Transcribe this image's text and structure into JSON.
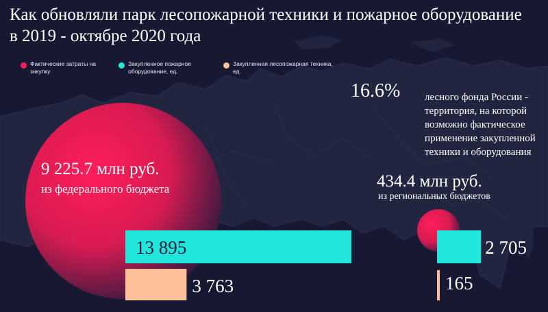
{
  "title": "Как обновляли парк лесопожарной техники и пожарное оборудование в 2019 - октябре 2020 года",
  "legend": [
    {
      "label": "Фактические затраты на закупку",
      "color": "#ff1e5a"
    },
    {
      "label": "Закупленное пожарное оборудование, ед.",
      "color": "#22e6dc"
    },
    {
      "label": "Закупленная лесопожарная техника, ед.",
      "color": "#ffbf98"
    }
  ],
  "forest_share": {
    "value": "16.6%",
    "text": "лесного фонда России - территория, на которой возможно фактическое применение закупленной техники и оборудования"
  },
  "colors": {
    "background": "#171933",
    "map": "#22253f",
    "spending": "#ff1e5a",
    "equipment": "#22e6dc",
    "vehicles": "#ffbf98"
  },
  "chart_data": {
    "type": "bar",
    "groups": [
      {
        "spending_value": 9225.7,
        "spending_label": "9 225.7 млн руб.",
        "spending_source": "из федерального бюджета",
        "equipment": 13895,
        "equipment_label": "13 895",
        "vehicles": 3763,
        "vehicles_label": "3 763"
      },
      {
        "spending_value": 434.4,
        "spending_label": "434.4 млн руб.",
        "spending_source": "из региональных бюджетов",
        "equipment": 2705,
        "equipment_label": "2 705",
        "vehicles": 165,
        "vehicles_label": "165"
      }
    ]
  }
}
